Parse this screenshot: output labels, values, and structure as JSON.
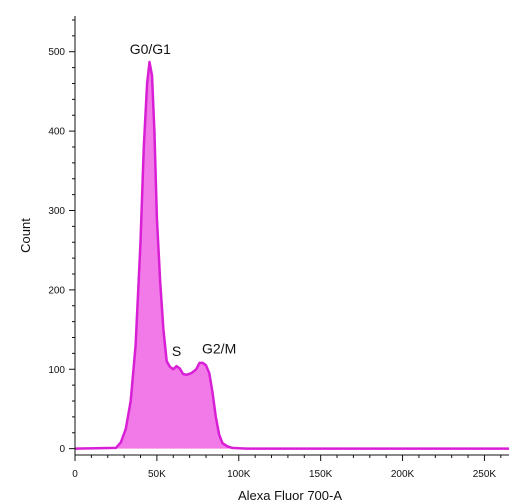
{
  "chart_data": {
    "type": "area",
    "title": "",
    "xlabel": "Alexa Fluor 700-A",
    "ylabel": "Count",
    "xlim": [
      0,
      265000
    ],
    "ylim": [
      -8,
      545
    ],
    "x_ticks": [
      {
        "value": 0,
        "label": "0"
      },
      {
        "value": 50000,
        "label": "50K"
      },
      {
        "value": 100000,
        "label": "100K"
      },
      {
        "value": 150000,
        "label": "150K"
      },
      {
        "value": 200000,
        "label": "200K"
      },
      {
        "value": 250000,
        "label": "250K"
      }
    ],
    "y_ticks": [
      {
        "value": 0,
        "label": "0"
      },
      {
        "value": 100,
        "label": "100"
      },
      {
        "value": 200,
        "label": "200"
      },
      {
        "value": 300,
        "label": "300"
      },
      {
        "value": 400,
        "label": "400"
      },
      {
        "value": 500,
        "label": "500"
      }
    ],
    "grid": false,
    "colors": {
      "fill": "#f27ae8",
      "stroke": "#d81fd6"
    },
    "series": [
      {
        "x": [
          0,
          25000,
          28000,
          31000,
          34000,
          37000,
          40000,
          42000,
          44000,
          45500,
          47000,
          48500,
          50000,
          52000,
          54000,
          56000,
          58000,
          60000,
          62000,
          64000,
          66000,
          68000,
          71000,
          74000,
          76000,
          78000,
          80000,
          82000,
          84000,
          86000,
          88000,
          90000,
          93000,
          96000,
          100000,
          105000,
          120000,
          150000,
          200000,
          265000
        ],
        "y": [
          0,
          1,
          8,
          25,
          60,
          130,
          260,
          380,
          460,
          487,
          470,
          400,
          290,
          210,
          150,
          110,
          103,
          100,
          104,
          101,
          94,
          93,
          95,
          100,
          108,
          108,
          105,
          95,
          70,
          40,
          18,
          7,
          3,
          1,
          0.5,
          0,
          0,
          0,
          0,
          0
        ]
      }
    ],
    "annotations": [
      {
        "text": "G0/G1",
        "x": 46000,
        "y": 497
      },
      {
        "text": "S",
        "x": 62000,
        "y": 117
      },
      {
        "text": "G2/M",
        "x": 88000,
        "y": 120
      }
    ]
  }
}
